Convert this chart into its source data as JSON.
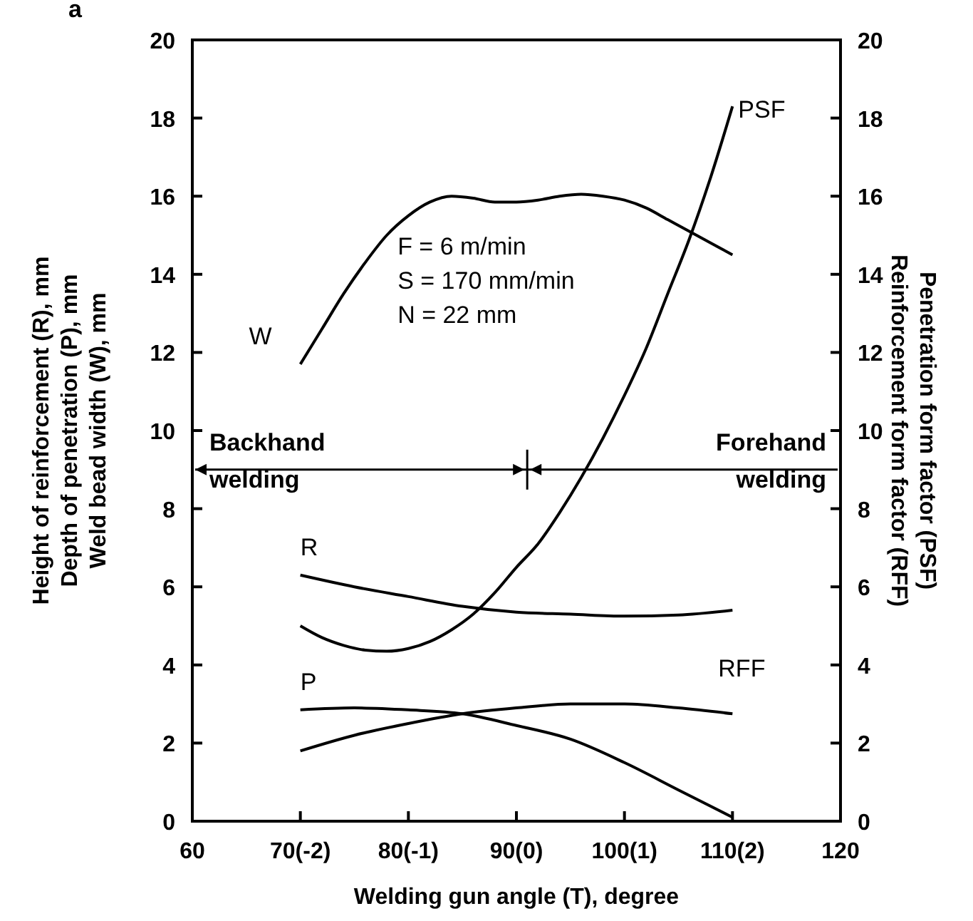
{
  "chart_data": {
    "type": "line",
    "xlabel": "Welding gun angle (T), degree",
    "ylabel": "Height of reinforcement (R), mm\nDepth of penetration (P), mm\nWeld bead width (W), mm",
    "y2label": "Penetration form factor (PSF)\nReinforcement form factor (RFF)",
    "xlim": [
      60,
      120
    ],
    "xticks": [
      60,
      {
        "value": 70,
        "label": "70(-2)"
      },
      {
        "value": 80,
        "label": "80(-1)"
      },
      {
        "value": 90,
        "label": "90(0)"
      },
      {
        "value": 100,
        "label": "100(1)"
      },
      {
        "value": 110,
        "label": "110(2)"
      },
      120
    ],
    "ylim": [
      0,
      20
    ],
    "yticks": [
      0,
      2,
      4,
      6,
      8,
      10,
      12,
      14,
      16,
      18,
      20
    ],
    "y2lim": [
      0,
      20
    ],
    "y2ticks": [
      0,
      2,
      4,
      6,
      8,
      10,
      12,
      14,
      16,
      18,
      20
    ],
    "grid": false,
    "marker": "none",
    "line_style": "solid",
    "ref_lines": [
      {
        "axis": "y",
        "value": 9,
        "color": "#000000"
      }
    ],
    "annotations": [
      "a",
      "F = 6 m/min\nS = 170 mm/min\nN = 22 mm",
      "Backhand\nwelding",
      "Forehand\nwelding"
    ],
    "series": [
      {
        "name": "W",
        "color": "#000000",
        "x": [
          70,
          72,
          74,
          76,
          78,
          80,
          82,
          84,
          86,
          88,
          90,
          92,
          94,
          96,
          98,
          100,
          102,
          104,
          106,
          108,
          110
        ],
        "values": [
          11.7,
          12.6,
          13.5,
          14.3,
          15.0,
          15.5,
          15.85,
          16.0,
          15.95,
          15.85,
          15.85,
          15.9,
          16.0,
          16.05,
          16.0,
          15.9,
          15.7,
          15.4,
          15.1,
          14.8,
          14.5
        ]
      },
      {
        "name": "PSF",
        "color": "#000000",
        "x": [
          70,
          72,
          74,
          76,
          78,
          80,
          82,
          84,
          86,
          88,
          90,
          92,
          94,
          96,
          98,
          100,
          102,
          104,
          106,
          108,
          110
        ],
        "values": [
          5.0,
          4.7,
          4.5,
          4.38,
          4.35,
          4.42,
          4.6,
          4.9,
          5.3,
          5.85,
          6.5,
          7.1,
          7.9,
          8.8,
          9.8,
          10.9,
          12.1,
          13.5,
          14.9,
          16.5,
          18.3
        ]
      },
      {
        "name": "R",
        "color": "#000000",
        "x": [
          70,
          75,
          80,
          85,
          90,
          95,
          100,
          105,
          110
        ],
        "values": [
          6.3,
          6.0,
          5.75,
          5.5,
          5.35,
          5.3,
          5.25,
          5.28,
          5.4
        ]
      },
      {
        "name": "P",
        "color": "#000000",
        "x": [
          70,
          75,
          80,
          85,
          90,
          95,
          100,
          105,
          110
        ],
        "values": [
          2.85,
          2.9,
          2.85,
          2.75,
          2.45,
          2.1,
          1.5,
          0.8,
          0.1
        ]
      },
      {
        "name": "RFF",
        "color": "#000000",
        "x": [
          70,
          75,
          80,
          85,
          90,
          95,
          100,
          105,
          110
        ],
        "values": [
          1.8,
          2.2,
          2.5,
          2.75,
          2.9,
          3.0,
          3.0,
          2.9,
          2.75
        ]
      }
    ]
  }
}
